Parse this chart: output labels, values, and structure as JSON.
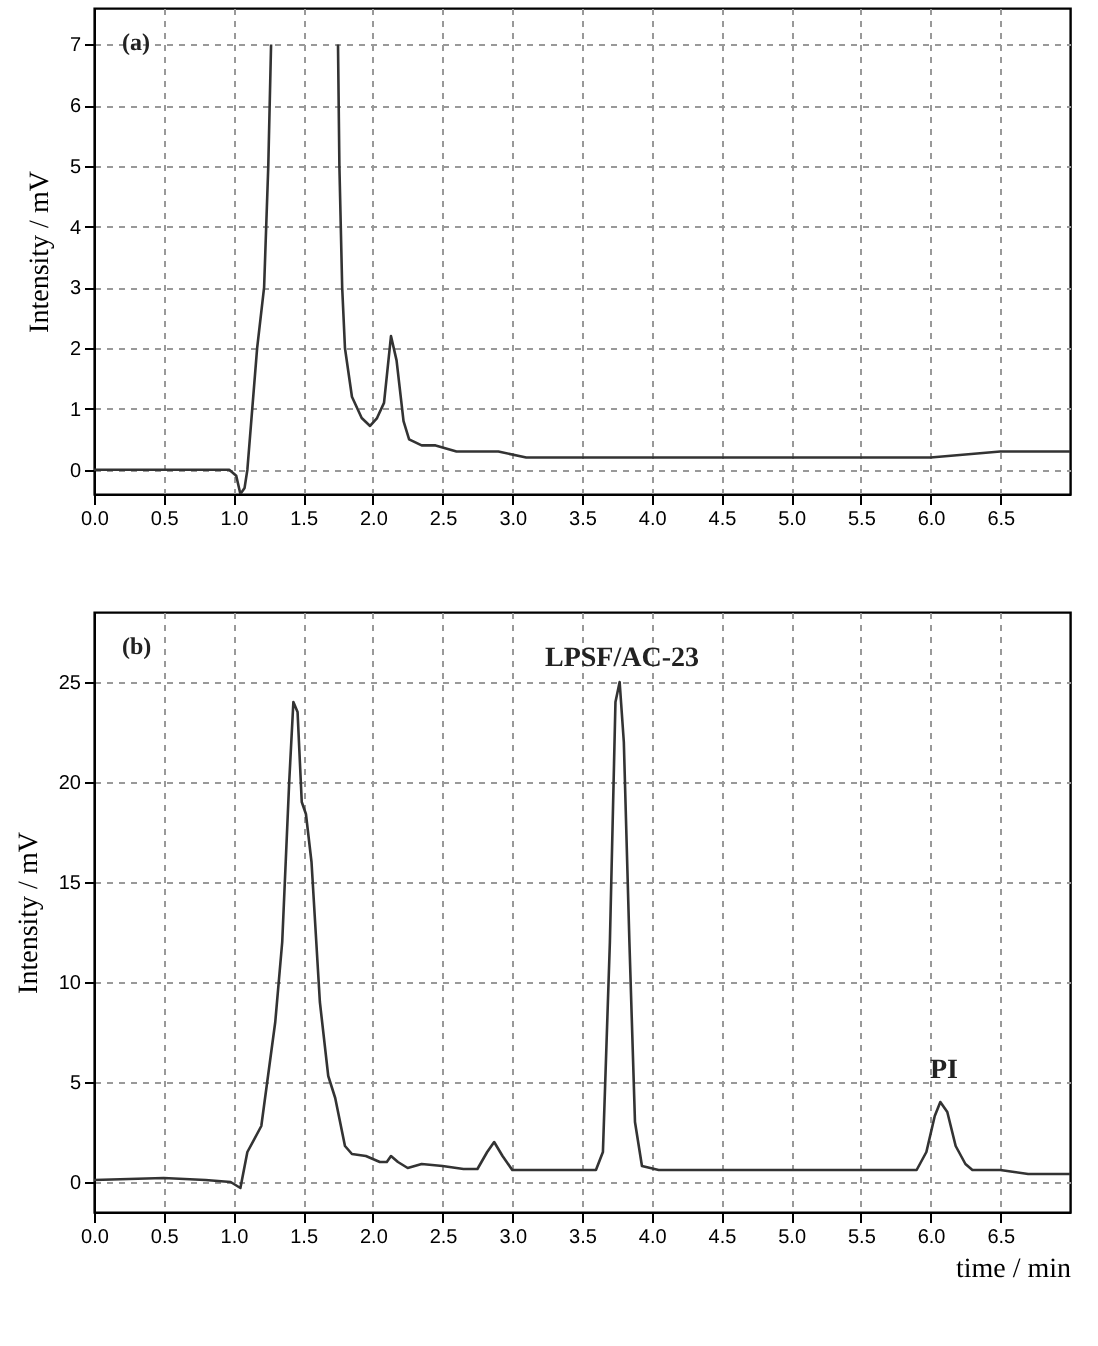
{
  "chart_data": [
    {
      "type": "line",
      "ylabel": "Intensity / mV",
      "annotations": [
        "(a)"
      ],
      "xlim": [
        0,
        7
      ],
      "ylim": [
        -0.4,
        7.6
      ],
      "xticks": [
        {
          "value": 0,
          "label": "0.0"
        },
        {
          "value": 0.5,
          "label": "0.5"
        },
        {
          "value": 1,
          "label": "1.0"
        },
        {
          "value": 1.5,
          "label": "1.5"
        },
        {
          "value": 2,
          "label": "2.0"
        },
        {
          "value": 2.5,
          "label": "2.5"
        },
        {
          "value": 3,
          "label": "3.0"
        },
        {
          "value": 3.5,
          "label": "3.5"
        },
        {
          "value": 4,
          "label": "4.0"
        },
        {
          "value": 4.5,
          "label": "4.5"
        },
        {
          "value": 5,
          "label": "5.0"
        },
        {
          "value": 5.5,
          "label": "5.5"
        },
        {
          "value": 6,
          "label": "6.0"
        },
        {
          "value": 6.5,
          "label": "6.5"
        }
      ],
      "yticks": [
        0,
        1,
        2,
        3,
        4,
        5,
        6,
        7
      ],
      "grid": true,
      "series": [
        {
          "color": "#333333",
          "x": [
            0,
            0.3,
            0.5,
            0.8,
            0.97,
            1.02,
            1.05,
            1.08,
            1.1,
            1.17,
            1.22,
            1.25,
            1.27,
            1.5,
            1.75,
            1.76,
            1.78,
            1.8,
            1.85,
            1.92,
            1.98,
            2.03,
            2.08,
            2.13,
            2.17,
            2.22,
            2.26,
            2.35,
            2.45,
            2.6,
            2.75,
            2.9,
            3.1,
            3.5,
            4.0,
            4.5,
            5.0,
            6.0,
            6.5,
            6.55,
            7.0
          ],
          "values": [
            0.0,
            0.0,
            0.0,
            0.0,
            0.0,
            -0.1,
            -0.4,
            -0.3,
            0.0,
            2.0,
            3.0,
            5.0,
            7.0,
            null,
            7.0,
            5.0,
            3.0,
            2.0,
            1.2,
            0.85,
            0.72,
            0.85,
            1.1,
            2.2,
            1.8,
            0.8,
            0.5,
            0.4,
            0.4,
            0.3,
            0.3,
            0.3,
            0.2,
            0.2,
            0.2,
            0.2,
            0.2,
            0.2,
            0.3,
            0.3,
            0.3
          ]
        }
      ]
    },
    {
      "type": "line",
      "ylabel": "Intensity / mV",
      "xlabel": "time / min",
      "xlim": [
        0,
        7
      ],
      "ylim": [
        -1.5,
        28.5
      ],
      "annotations": [
        "(b)",
        "LPSF/AC-23",
        "PI"
      ],
      "xticks": [
        {
          "value": 0,
          "label": "0.0"
        },
        {
          "value": 0.5,
          "label": "0.5"
        },
        {
          "value": 1,
          "label": "1.0"
        },
        {
          "value": 1.5,
          "label": "1.5"
        },
        {
          "value": 2,
          "label": "2.0"
        },
        {
          "value": 2.5,
          "label": "2.5"
        },
        {
          "value": 3,
          "label": "3.0"
        },
        {
          "value": 3.5,
          "label": "3.5"
        },
        {
          "value": 4,
          "label": "4.0"
        },
        {
          "value": 4.5,
          "label": "4.5"
        },
        {
          "value": 5,
          "label": "5.0"
        },
        {
          "value": 5.5,
          "label": "5.5"
        },
        {
          "value": 6,
          "label": "6.0"
        },
        {
          "value": 6.5,
          "label": "6.5"
        }
      ],
      "yticks": [
        0,
        5,
        10,
        15,
        20,
        25
      ],
      "grid": true,
      "series": [
        {
          "color": "#333333",
          "x": [
            0,
            0.5,
            0.8,
            0.98,
            1.05,
            1.1,
            1.2,
            1.3,
            1.35,
            1.4,
            1.43,
            1.46,
            1.49,
            1.52,
            1.56,
            1.62,
            1.68,
            1.73,
            1.8,
            1.85,
            1.95,
            2.05,
            2.1,
            2.13,
            2.18,
            2.25,
            2.35,
            2.5,
            2.65,
            2.75,
            2.82,
            2.87,
            2.93,
            3.0,
            3.5,
            3.6,
            3.65,
            3.7,
            3.74,
            3.77,
            3.8,
            3.84,
            3.88,
            3.93,
            4.05,
            5.0,
            5.9,
            5.97,
            6.03,
            6.07,
            6.12,
            6.18,
            6.25,
            6.3,
            6.5,
            6.6,
            6.7,
            7.0
          ],
          "values": [
            0.1,
            0.2,
            0.1,
            0.0,
            -0.3,
            1.5,
            2.8,
            8,
            12,
            20,
            24,
            23.5,
            19,
            18.4,
            16,
            9,
            5.3,
            4.2,
            1.8,
            1.4,
            1.3,
            1.0,
            1.0,
            1.3,
            1.0,
            0.7,
            0.9,
            0.8,
            0.65,
            0.65,
            1.5,
            2.0,
            1.3,
            0.6,
            0.6,
            0.6,
            1.5,
            12,
            24,
            25,
            22,
            12,
            3,
            0.8,
            0.6,
            0.6,
            0.6,
            1.5,
            3.3,
            4.0,
            3.5,
            1.8,
            0.9,
            0.6,
            0.6,
            0.5,
            0.4,
            0.4
          ]
        }
      ]
    }
  ]
}
